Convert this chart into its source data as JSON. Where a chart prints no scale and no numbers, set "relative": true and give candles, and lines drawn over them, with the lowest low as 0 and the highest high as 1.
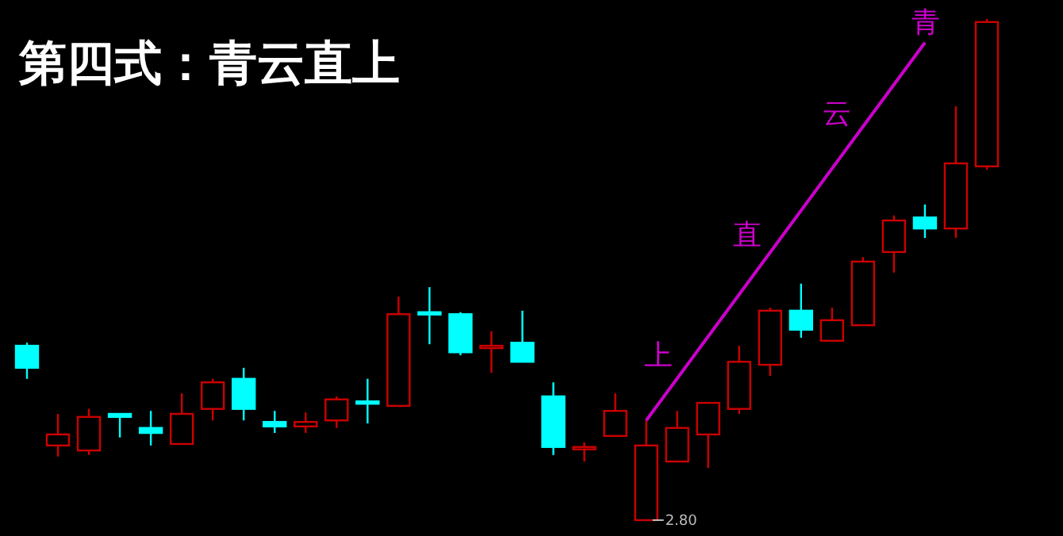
{
  "chart_data": {
    "type": "candlestick",
    "title": "第四式：青云直上",
    "relative": true,
    "categories": [
      null,
      null,
      null,
      null,
      null,
      null,
      null,
      null,
      null,
      null,
      null,
      null,
      null,
      null,
      null,
      null,
      null,
      null,
      null,
      null,
      null,
      null,
      null,
      null,
      null,
      null,
      null,
      null,
      null,
      null,
      null,
      null
    ],
    "ohlc": [
      [
        0.348,
        0.354,
        0.282,
        0.304
      ],
      [
        0.149,
        0.212,
        0.127,
        0.171
      ],
      [
        0.139,
        0.222,
        0.13,
        0.206
      ],
      [
        0.212,
        0.212,
        0.165,
        0.206
      ],
      [
        0.184,
        0.218,
        0.149,
        0.174
      ],
      [
        0.152,
        0.253,
        0.152,
        0.212
      ],
      [
        0.222,
        0.282,
        0.199,
        0.275
      ],
      [
        0.282,
        0.304,
        0.199,
        0.222
      ],
      [
        0.196,
        0.218,
        0.174,
        0.187
      ],
      [
        0.187,
        0.215,
        0.174,
        0.196
      ],
      [
        0.199,
        0.247,
        0.184,
        0.241
      ],
      [
        0.237,
        0.282,
        0.193,
        0.234
      ],
      [
        0.228,
        0.446,
        0.228,
        0.411
      ],
      [
        0.415,
        0.465,
        0.351,
        0.411
      ],
      [
        0.411,
        0.415,
        0.329,
        0.335
      ],
      [
        0.345,
        0.377,
        0.294,
        0.348
      ],
      [
        0.354,
        0.418,
        0.316,
        0.316
      ],
      [
        0.247,
        0.275,
        0.13,
        0.146
      ],
      [
        0.142,
        0.155,
        0.117,
        0.146
      ],
      [
        0.168,
        0.253,
        0.168,
        0.218
      ],
      [
        0,
        0.199,
        0,
        0.149
      ],
      [
        0.117,
        0.218,
        0.117,
        0.184
      ],
      [
        0.171,
        0.234,
        0.104,
        0.234
      ],
      [
        0.222,
        0.348,
        0.212,
        0.316
      ],
      [
        0.31,
        0.424,
        0.288,
        0.418
      ],
      [
        0.418,
        0.472,
        0.364,
        0.38
      ],
      [
        0.358,
        0.424,
        0.358,
        0.399
      ],
      [
        0.389,
        0.525,
        0.389,
        0.516
      ],
      [
        0.535,
        0.608,
        0.494,
        0.598
      ],
      [
        0.604,
        0.63,
        0.563,
        0.582
      ],
      [
        0.582,
        0.826,
        0.563,
        0.712
      ],
      [
        0.706,
        1,
        0.699,
        0.994
      ]
    ],
    "series": [
      {
        "type": "line",
        "color": "#cc00cc",
        "values": [
          null,
          null,
          null,
          null,
          null,
          null,
          null,
          null,
          null,
          null,
          null,
          null,
          null,
          null,
          null,
          null,
          null,
          null,
          null,
          null,
          0.199,
          null,
          null,
          null,
          null,
          null,
          null,
          null,
          null,
          0.953,
          null,
          null
        ]
      }
    ],
    "annotations": [
      "上",
      "直",
      "云",
      "青",
      "2.80"
    ]
  }
}
